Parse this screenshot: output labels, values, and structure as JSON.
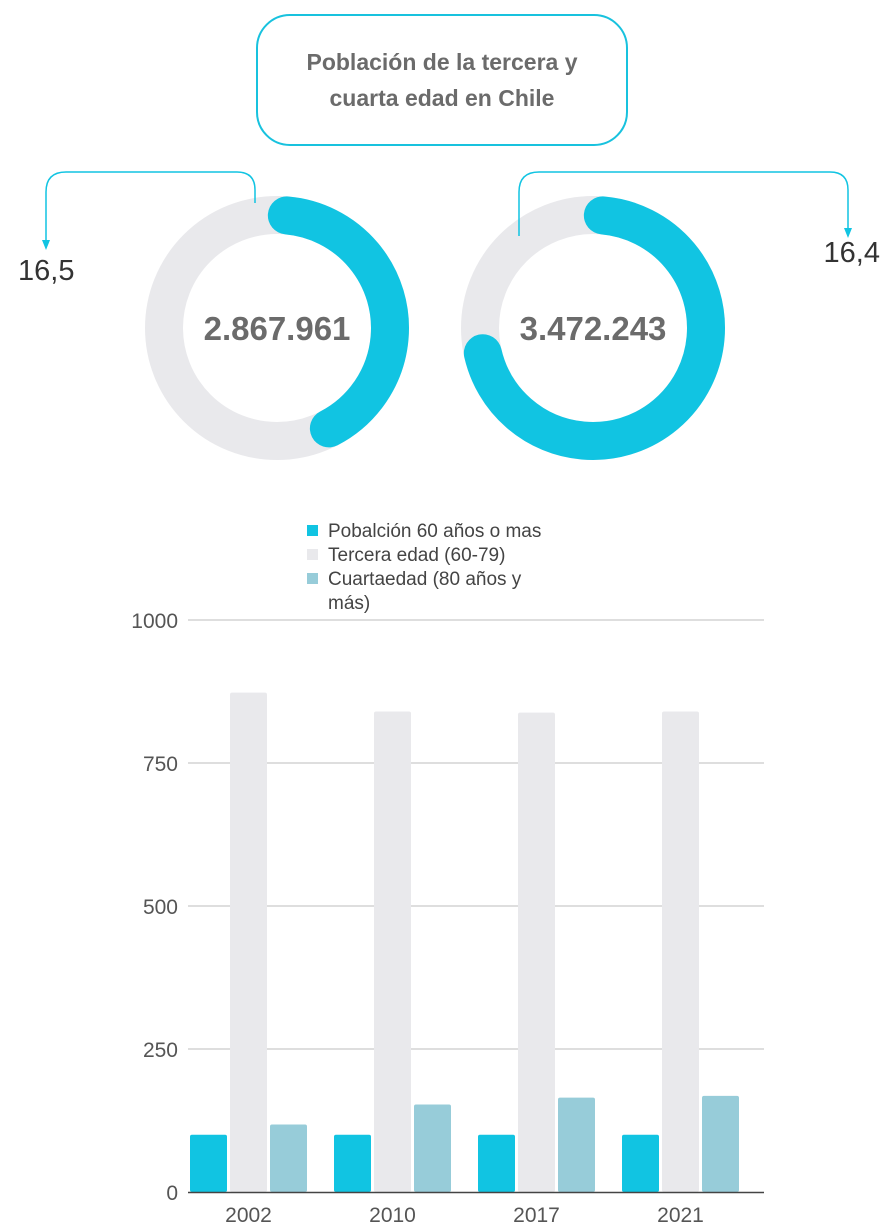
{
  "title": "Población de la tercera y cuarta edad en Chile",
  "colors": {
    "accent": "#11c4e2",
    "track": "#e9e9ec",
    "third_age": "#e9e9ec",
    "fourth_age": "#97ccd9",
    "text": "#6b6b6b",
    "axis_text": "#555555",
    "grid": "#bdbdbd"
  },
  "donuts": [
    {
      "center_value": "2.867.961",
      "side_value": "16,5",
      "fill_fraction": 0.41
    },
    {
      "center_value": "3.472.243",
      "side_value": "16,4",
      "fill_fraction": 0.7
    }
  ],
  "chart_data": {
    "type": "bar",
    "categories": [
      "2002",
      "2010",
      "2017",
      "2021"
    ],
    "series": [
      {
        "name": "Pobalción 60 años o mas",
        "values": [
          100,
          100,
          100,
          100
        ],
        "color": "#11c4e2"
      },
      {
        "name": "Tercera edad (60-79)",
        "values": [
          873,
          840,
          838,
          840
        ],
        "color": "#e9e9ec"
      },
      {
        "name": "Cuartaedad (80 años y más)",
        "values": [
          118,
          153,
          165,
          168
        ],
        "color": "#97ccd9"
      }
    ],
    "ylim": [
      0,
      1000
    ],
    "yticks": [
      0,
      250,
      500,
      750,
      1000
    ],
    "grid": true,
    "legend_position": "top"
  }
}
